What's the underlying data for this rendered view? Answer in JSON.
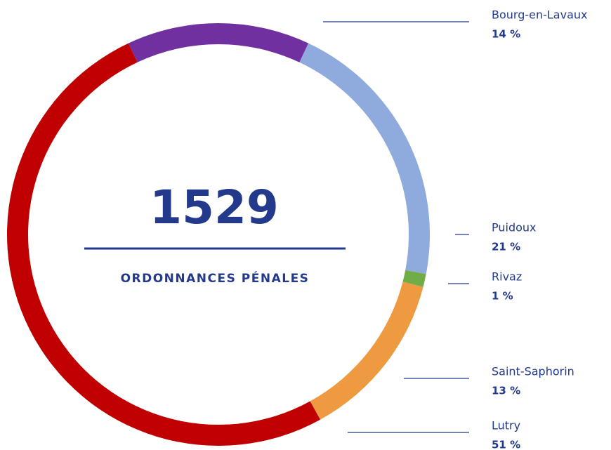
{
  "chart_data": {
    "type": "donut",
    "total": 1529,
    "center_label": "ORDONNANCES PÉNALES",
    "categories": [
      "Bourg-en-Lavaux",
      "Puidoux",
      "Rivaz",
      "Saint-Saphorin",
      "Lutry"
    ],
    "values": [
      14,
      21,
      1,
      13,
      51
    ],
    "value_labels": [
      "14 %",
      "21 %",
      "1 %",
      "13 %",
      "51 %"
    ],
    "colors": [
      "#7030a0",
      "#8faadc",
      "#70ad47",
      "#ed9a40",
      "#c00000"
    ]
  }
}
